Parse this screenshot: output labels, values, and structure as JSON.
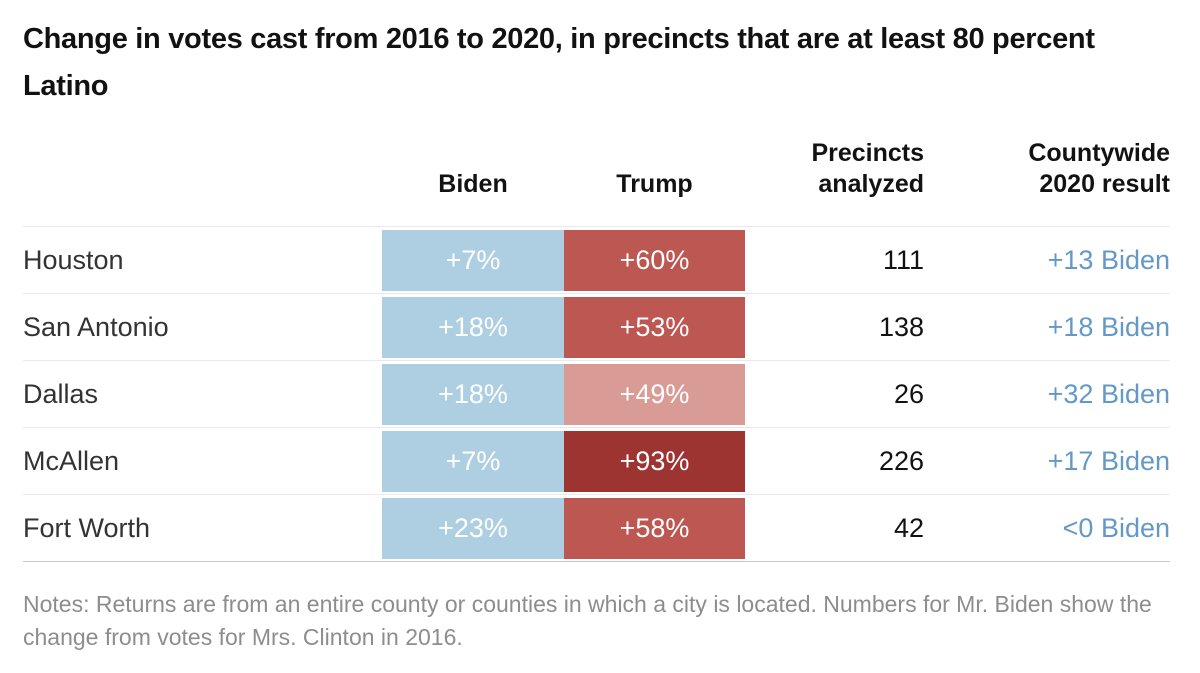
{
  "title": "Change in votes cast from 2016 to 2020, in precincts that are at least 80 percent Latino",
  "table": {
    "headers": {
      "biden": "Biden",
      "trump": "Trump",
      "precincts": [
        "Precincts",
        "analyzed"
      ],
      "countywide": [
        "Countywide",
        "2020 result"
      ]
    },
    "rows": [
      {
        "city": "Houston",
        "biden": "+7%",
        "trump": "+60%",
        "precincts": "111",
        "countywide": "+13 Biden",
        "trump_color": "#bd5752"
      },
      {
        "city": "San Antonio",
        "biden": "+18%",
        "trump": "+53%",
        "precincts": "138",
        "countywide": "+18 Biden",
        "trump_color": "#bd5752"
      },
      {
        "city": "Dallas",
        "biden": "+18%",
        "trump": "+49%",
        "precincts": "26",
        "countywide": "+32 Biden",
        "trump_color": "#d89b96"
      },
      {
        "city": "McAllen",
        "biden": "+7%",
        "trump": "+93%",
        "precincts": "226",
        "countywide": "+17 Biden",
        "trump_color": "#9e3432"
      },
      {
        "city": "Fort Worth",
        "biden": "+23%",
        "trump": "+58%",
        "precincts": "42",
        "countywide": "<0 Biden",
        "trump_color": "#bd5752"
      }
    ]
  },
  "notes": "Notes: Returns are from an entire county or counties in which a city is located. Numbers for Mr. Biden show the change from votes for Mrs. Clinton in 2016.",
  "colors": {
    "biden_cell": "#aecfe2",
    "trump_cell_mid": "#bd5752",
    "trump_cell_light": "#d89b96",
    "trump_cell_dark": "#9e3432",
    "countywide_text": "#6499c7",
    "divider": "#e9e9e9",
    "bottom_rule": "#c9c9c9"
  },
  "chart_data": {
    "type": "table",
    "title": "Change in votes cast from 2016 to 2020, in precincts that are at least 80 percent Latino",
    "columns": [
      "City",
      "Biden",
      "Trump",
      "Precincts analyzed",
      "Countywide 2020 result"
    ],
    "rows": [
      [
        "Houston",
        "+7%",
        "+60%",
        111,
        "+13 Biden"
      ],
      [
        "San Antonio",
        "+18%",
        "+53%",
        138,
        "+18 Biden"
      ],
      [
        "Dallas",
        "+18%",
        "+49%",
        26,
        "+32 Biden"
      ],
      [
        "McAllen",
        "+7%",
        "+93%",
        226,
        "+17 Biden"
      ],
      [
        "Fort Worth",
        "+23%",
        "+58%",
        42,
        "<0 Biden"
      ]
    ],
    "layout_hints": "Biden change cells uniform light blue; Trump change cells shaded by magnitude (light for +49%, medium for +53% to +60%, dark for +93%); precincts and countywide columns right-aligned; countywide values in blue text",
    "notes": "Notes: Returns are from an entire county or counties in which a city is located. Numbers for Mr. Biden show the change from votes for Mrs. Clinton in 2016."
  }
}
